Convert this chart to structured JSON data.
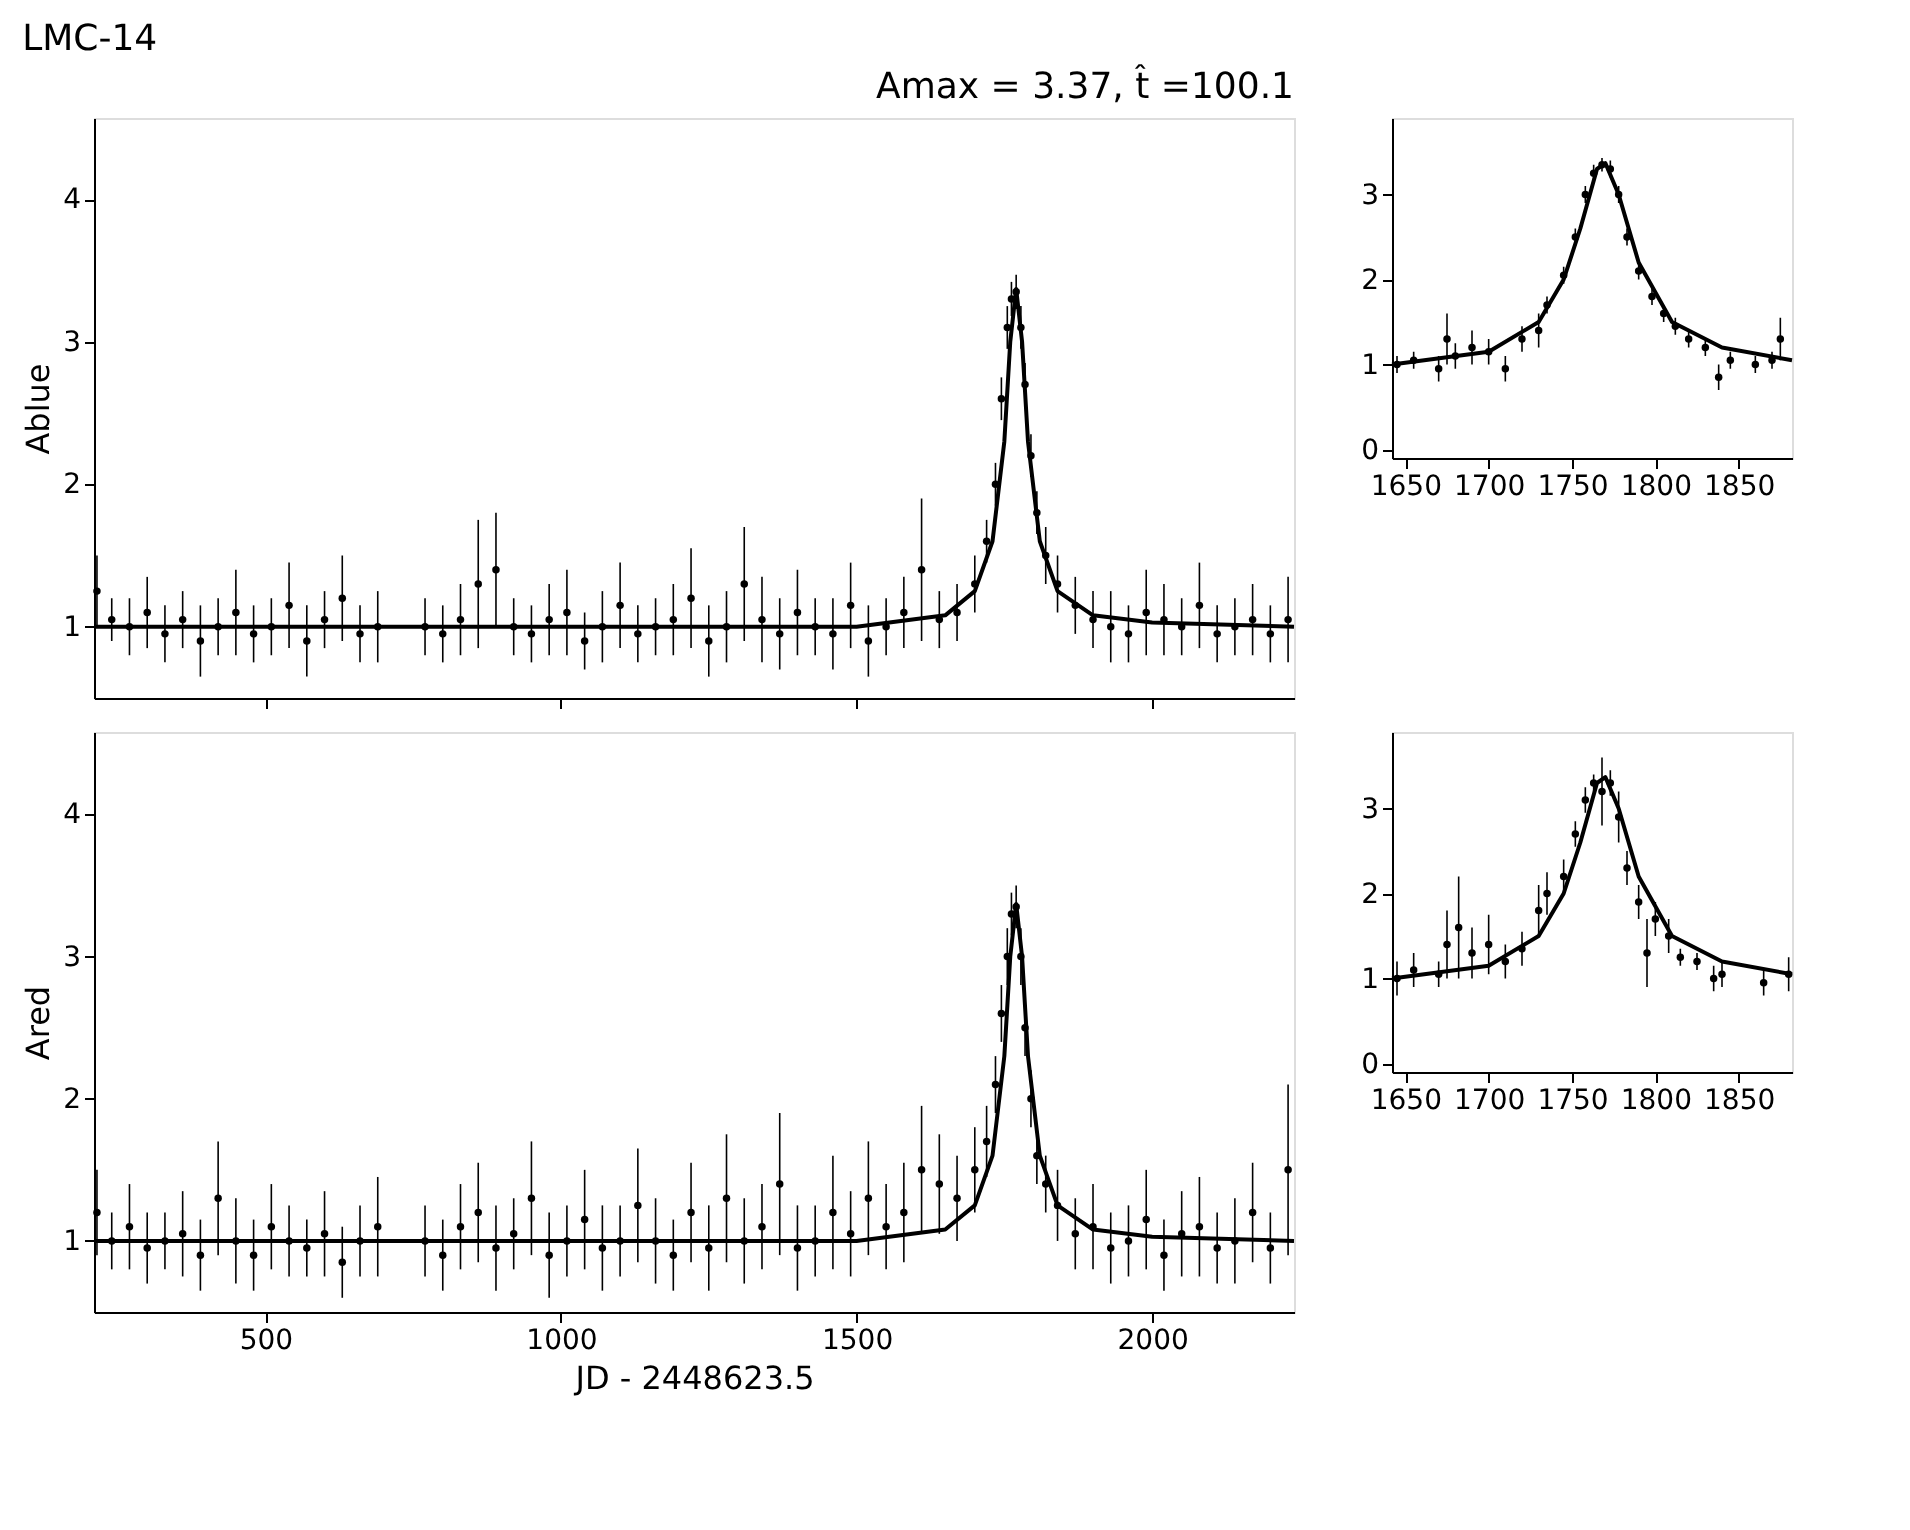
{
  "chart_data": [
    {
      "type": "scatter",
      "title": "LMC-14",
      "annotations": [
        "Amax = 3.37, t̂ =100.1"
      ],
      "ylabel": "Ablue",
      "xlim": [
        210,
        2240
      ],
      "xticks": [
        500,
        1000,
        1500,
        2000
      ],
      "ylim": [
        0.5,
        4.57
      ],
      "yticks": [
        1,
        2,
        3,
        4
      ],
      "tick_labels": "y",
      "series": [
        {
          "type": "scatter",
          "marker": "circle",
          "color": "#000000",
          "x": [
            215,
            240,
            270,
            300,
            330,
            360,
            390,
            420,
            450,
            480,
            510,
            540,
            570,
            600,
            630,
            660,
            690,
            770,
            800,
            830,
            860,
            890,
            920,
            950,
            980,
            1010,
            1040,
            1070,
            1100,
            1130,
            1160,
            1190,
            1220,
            1250,
            1280,
            1310,
            1340,
            1370,
            1400,
            1430,
            1460,
            1490,
            1520,
            1550,
            1580,
            1610,
            1640,
            1670,
            1700,
            1720,
            1735,
            1745,
            1755,
            1762,
            1770,
            1778,
            1785,
            1795,
            1805,
            1820,
            1840,
            1870,
            1900,
            1930,
            1960,
            1990,
            2020,
            2050,
            2080,
            2110,
            2140,
            2170,
            2200,
            2230
          ],
          "values": [
            1.25,
            1.05,
            1.0,
            1.1,
            0.95,
            1.05,
            0.9,
            1.0,
            1.1,
            0.95,
            1.0,
            1.15,
            0.9,
            1.05,
            1.2,
            0.95,
            1.0,
            1.0,
            0.95,
            1.05,
            1.3,
            1.4,
            1.0,
            0.95,
            1.05,
            1.1,
            0.9,
            1.0,
            1.15,
            0.95,
            1.0,
            1.05,
            1.2,
            0.9,
            1.0,
            1.3,
            1.05,
            0.95,
            1.1,
            1.0,
            0.95,
            1.15,
            0.9,
            1.0,
            1.1,
            1.4,
            1.05,
            1.1,
            1.3,
            1.6,
            2.0,
            2.6,
            3.1,
            3.3,
            3.35,
            3.1,
            2.7,
            2.2,
            1.8,
            1.5,
            1.3,
            1.15,
            1.05,
            1.0,
            0.95,
            1.1,
            1.05,
            1.0,
            1.15,
            0.95,
            1.0,
            1.05,
            0.95,
            1.05
          ],
          "errors": [
            0.25,
            0.15,
            0.2,
            0.25,
            0.2,
            0.2,
            0.25,
            0.2,
            0.3,
            0.2,
            0.2,
            0.3,
            0.25,
            0.2,
            0.3,
            0.2,
            0.25,
            0.2,
            0.2,
            0.25,
            0.45,
            0.4,
            0.2,
            0.2,
            0.25,
            0.3,
            0.2,
            0.25,
            0.3,
            0.2,
            0.2,
            0.25,
            0.35,
            0.25,
            0.25,
            0.4,
            0.3,
            0.25,
            0.3,
            0.2,
            0.25,
            0.3,
            0.25,
            0.2,
            0.25,
            0.5,
            0.2,
            0.2,
            0.2,
            0.15,
            0.15,
            0.15,
            0.15,
            0.12,
            0.12,
            0.15,
            0.15,
            0.15,
            0.15,
            0.2,
            0.2,
            0.2,
            0.2,
            0.25,
            0.2,
            0.3,
            0.25,
            0.2,
            0.3,
            0.2,
            0.2,
            0.25,
            0.2,
            0.3
          ]
        },
        {
          "type": "line",
          "color": "#000000",
          "x": [
            210,
            1500,
            1650,
            1700,
            1730,
            1750,
            1760,
            1770,
            1780,
            1790,
            1810,
            1840,
            1900,
            2000,
            2240
          ],
          "values": [
            1.0,
            1.0,
            1.08,
            1.25,
            1.6,
            2.3,
            3.0,
            3.37,
            3.0,
            2.3,
            1.6,
            1.25,
            1.08,
            1.03,
            1.0
          ]
        }
      ]
    },
    {
      "type": "scatter",
      "xlim": [
        1642,
        1882
      ],
      "xticks": [
        1650,
        1700,
        1750,
        1800,
        1850
      ],
      "ylim": [
        -0.1,
        3.9
      ],
      "yticks": [
        0,
        1,
        2,
        3
      ],
      "series": [
        {
          "type": "scatter",
          "marker": "circle",
          "color": "#000000",
          "x": [
            1645,
            1655,
            1670,
            1675,
            1680,
            1690,
            1700,
            1710,
            1720,
            1730,
            1735,
            1745,
            1752,
            1758,
            1763,
            1768,
            1773,
            1778,
            1783,
            1790,
            1798,
            1805,
            1812,
            1820,
            1830,
            1838,
            1845,
            1860,
            1870,
            1875
          ],
          "values": [
            1.0,
            1.05,
            0.95,
            1.3,
            1.1,
            1.2,
            1.15,
            0.95,
            1.3,
            1.4,
            1.7,
            2.05,
            2.5,
            3.0,
            3.25,
            3.35,
            3.3,
            3.0,
            2.5,
            2.1,
            1.8,
            1.6,
            1.45,
            1.3,
            1.2,
            0.85,
            1.05,
            1.0,
            1.05,
            1.3
          ],
          "errors": [
            0.1,
            0.1,
            0.15,
            0.3,
            0.15,
            0.2,
            0.15,
            0.15,
            0.15,
            0.2,
            0.1,
            0.1,
            0.1,
            0.1,
            0.1,
            0.08,
            0.1,
            0.1,
            0.1,
            0.1,
            0.1,
            0.1,
            0.1,
            0.1,
            0.1,
            0.15,
            0.1,
            0.1,
            0.1,
            0.25
          ]
        },
        {
          "type": "line",
          "color": "#000000",
          "x": [
            1642,
            1700,
            1730,
            1745,
            1755,
            1765,
            1770,
            1778,
            1790,
            1810,
            1840,
            1882
          ],
          "values": [
            1.0,
            1.15,
            1.5,
            2.0,
            2.6,
            3.3,
            3.37,
            3.0,
            2.2,
            1.5,
            1.2,
            1.05
          ]
        }
      ]
    },
    {
      "type": "scatter",
      "xlabel": "JD - 2448623.5",
      "ylabel": "Ared",
      "xlim": [
        210,
        2240
      ],
      "xticks": [
        500,
        1000,
        1500,
        2000
      ],
      "ylim": [
        0.5,
        4.58
      ],
      "yticks": [
        1,
        2,
        3,
        4
      ],
      "series": [
        {
          "type": "scatter",
          "marker": "circle",
          "color": "#000000",
          "x": [
            215,
            240,
            270,
            300,
            330,
            360,
            390,
            420,
            450,
            480,
            510,
            540,
            570,
            600,
            630,
            660,
            690,
            770,
            800,
            830,
            860,
            890,
            920,
            950,
            980,
            1010,
            1040,
            1070,
            1100,
            1130,
            1160,
            1190,
            1220,
            1250,
            1280,
            1310,
            1340,
            1370,
            1400,
            1430,
            1460,
            1490,
            1520,
            1550,
            1580,
            1610,
            1640,
            1670,
            1700,
            1720,
            1735,
            1745,
            1755,
            1762,
            1770,
            1778,
            1785,
            1795,
            1805,
            1820,
            1840,
            1870,
            1900,
            1930,
            1960,
            1990,
            2020,
            2050,
            2080,
            2110,
            2140,
            2170,
            2200,
            2230
          ],
          "values": [
            1.2,
            1.0,
            1.1,
            0.95,
            1.0,
            1.05,
            0.9,
            1.3,
            1.0,
            0.9,
            1.1,
            1.0,
            0.95,
            1.05,
            0.85,
            1.0,
            1.1,
            1.0,
            0.9,
            1.1,
            1.2,
            0.95,
            1.05,
            1.3,
            0.9,
            1.0,
            1.15,
            0.95,
            1.0,
            1.25,
            1.0,
            0.9,
            1.2,
            0.95,
            1.3,
            1.0,
            1.1,
            1.4,
            0.95,
            1.0,
            1.2,
            1.05,
            1.3,
            1.1,
            1.2,
            1.5,
            1.4,
            1.3,
            1.5,
            1.7,
            2.1,
            2.6,
            3.0,
            3.3,
            3.35,
            3.0,
            2.5,
            2.0,
            1.6,
            1.4,
            1.25,
            1.05,
            1.1,
            0.95,
            1.0,
            1.15,
            0.9,
            1.05,
            1.1,
            0.95,
            1.0,
            1.2,
            0.95,
            1.5
          ],
          "errors": [
            0.3,
            0.2,
            0.3,
            0.25,
            0.2,
            0.3,
            0.25,
            0.4,
            0.3,
            0.25,
            0.3,
            0.25,
            0.2,
            0.3,
            0.25,
            0.25,
            0.35,
            0.25,
            0.25,
            0.3,
            0.35,
            0.3,
            0.25,
            0.4,
            0.3,
            0.25,
            0.35,
            0.3,
            0.25,
            0.4,
            0.3,
            0.25,
            0.35,
            0.3,
            0.45,
            0.3,
            0.3,
            0.5,
            0.3,
            0.25,
            0.4,
            0.3,
            0.4,
            0.3,
            0.35,
            0.45,
            0.35,
            0.3,
            0.3,
            0.25,
            0.2,
            0.2,
            0.2,
            0.15,
            0.15,
            0.2,
            0.2,
            0.2,
            0.2,
            0.2,
            0.25,
            0.25,
            0.3,
            0.25,
            0.25,
            0.35,
            0.25,
            0.3,
            0.35,
            0.25,
            0.3,
            0.35,
            0.25,
            0.6
          ]
        },
        {
          "type": "line",
          "color": "#000000",
          "x": [
            210,
            1500,
            1650,
            1700,
            1730,
            1750,
            1760,
            1770,
            1780,
            1790,
            1810,
            1840,
            1900,
            2000,
            2240
          ],
          "values": [
            1.0,
            1.0,
            1.08,
            1.25,
            1.6,
            2.3,
            3.0,
            3.37,
            3.0,
            2.3,
            1.6,
            1.25,
            1.08,
            1.03,
            1.0
          ]
        }
      ]
    },
    {
      "type": "scatter",
      "xlim": [
        1642,
        1882
      ],
      "xticks": [
        1650,
        1700,
        1750,
        1800,
        1850
      ],
      "ylim": [
        -0.1,
        3.9
      ],
      "yticks": [
        0,
        1,
        2,
        3
      ],
      "series": [
        {
          "type": "scatter",
          "marker": "circle",
          "color": "#000000",
          "x": [
            1645,
            1655,
            1670,
            1675,
            1682,
            1690,
            1700,
            1710,
            1720,
            1730,
            1735,
            1745,
            1752,
            1758,
            1763,
            1768,
            1773,
            1778,
            1783,
            1790,
            1795,
            1800,
            1808,
            1815,
            1825,
            1835,
            1840,
            1865,
            1880
          ],
          "values": [
            1.0,
            1.1,
            1.05,
            1.4,
            1.6,
            1.3,
            1.4,
            1.2,
            1.35,
            1.8,
            2.0,
            2.2,
            2.7,
            3.1,
            3.3,
            3.2,
            3.3,
            2.9,
            2.3,
            1.9,
            1.3,
            1.7,
            1.5,
            1.25,
            1.2,
            1.0,
            1.05,
            0.95,
            1.05
          ],
          "errors": [
            0.2,
            0.2,
            0.15,
            0.4,
            0.6,
            0.3,
            0.35,
            0.2,
            0.2,
            0.3,
            0.25,
            0.2,
            0.15,
            0.15,
            0.1,
            0.4,
            0.15,
            0.3,
            0.2,
            0.2,
            0.4,
            0.2,
            0.2,
            0.1,
            0.1,
            0.15,
            0.15,
            0.15,
            0.2
          ]
        },
        {
          "type": "line",
          "color": "#000000",
          "x": [
            1642,
            1700,
            1730,
            1745,
            1755,
            1765,
            1770,
            1778,
            1790,
            1810,
            1840,
            1882
          ],
          "values": [
            1.0,
            1.15,
            1.5,
            2.0,
            2.6,
            3.3,
            3.37,
            3.0,
            2.2,
            1.5,
            1.2,
            1.05
          ]
        }
      ]
    }
  ]
}
